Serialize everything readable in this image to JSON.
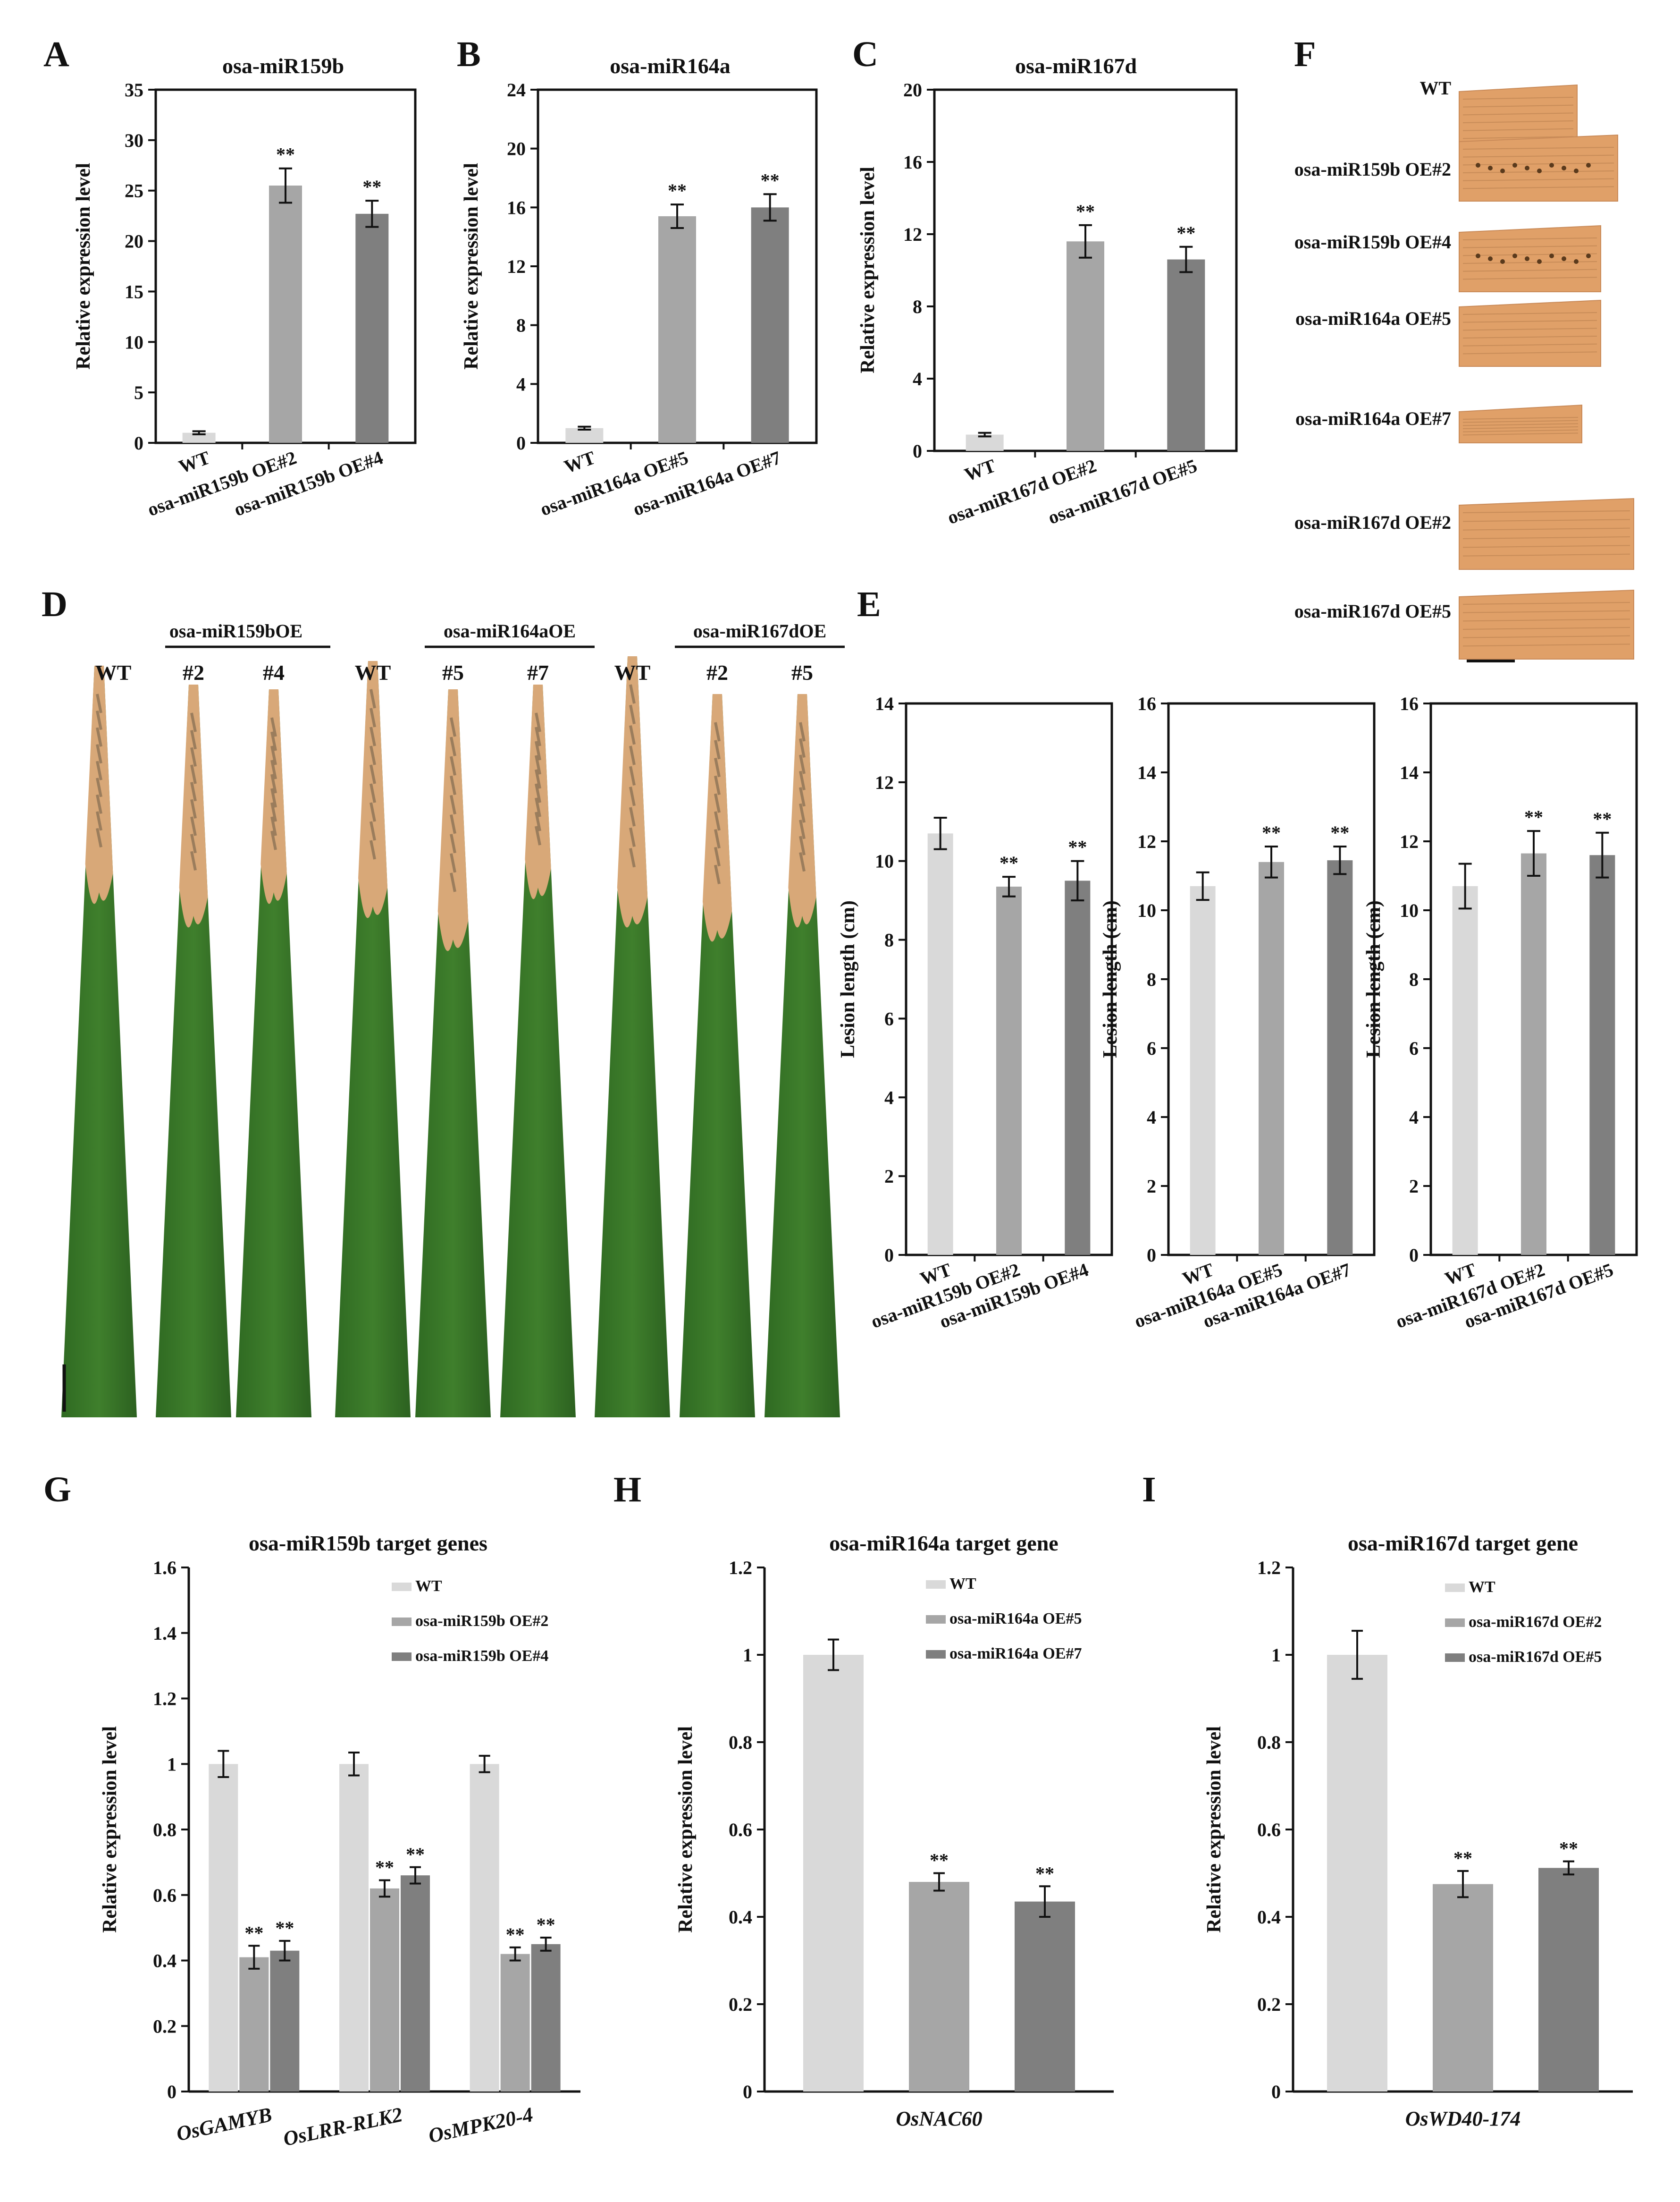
{
  "panels": {
    "A": "A",
    "B": "B",
    "C": "C",
    "D": "D",
    "E": "E",
    "F": "F",
    "G": "G",
    "H": "H",
    "I": "I"
  },
  "colors": {
    "wt": "#d9d9d9",
    "oe1": "#a6a6a6",
    "oe2": "#7f7f7f",
    "leaf_green": "#3f7f2c",
    "leaf_lesion": "#d8a878",
    "stain": "#e0a068"
  },
  "leaf_photo": {
    "group_labels": [
      "osa-miR159bOE",
      "osa-miR164aOE",
      "osa-miR167dOE"
    ],
    "lane_labels": [
      "WT",
      "#2",
      "#4",
      "WT",
      "#5",
      "#7",
      "WT",
      "#2",
      "#5"
    ]
  },
  "stain_photo": {
    "labels": [
      "WT",
      "osa-miR159b OE#2",
      "osa-miR159b OE#4",
      "osa-miR164a OE#5",
      "osa-miR164a OE#7",
      "osa-miR167d OE#2",
      "osa-miR167d OE#5"
    ]
  },
  "chart_data": [
    {
      "id": "A",
      "type": "bar",
      "title": "osa-miR159b",
      "ylabel": "Relative expression level",
      "ylim": [
        0,
        35
      ],
      "yticks": [
        "0",
        "5",
        "10",
        "15",
        "20",
        "25",
        "30",
        "35"
      ],
      "categories": [
        "WT",
        "osa-miR159b OE#2",
        "osa-miR159b OE#4"
      ],
      "values": [
        1.0,
        25.5,
        22.7
      ],
      "errors": [
        0.15,
        1.7,
        1.3
      ],
      "significance": [
        "",
        "**",
        "**"
      ]
    },
    {
      "id": "B",
      "type": "bar",
      "title": "osa-miR164a",
      "ylabel": "Relative expression level",
      "ylim": [
        0,
        24
      ],
      "yticks": [
        "0",
        "4",
        "8",
        "12",
        "16",
        "20",
        "24"
      ],
      "categories": [
        "WT",
        "osa-miR164a OE#5",
        "osa-miR164a OE#7"
      ],
      "values": [
        1.0,
        15.4,
        16.0
      ],
      "errors": [
        0.1,
        0.8,
        0.9
      ],
      "significance": [
        "",
        "**",
        "**"
      ]
    },
    {
      "id": "C",
      "type": "bar",
      "title": "osa-miR167d",
      "ylabel": "Relative expression level",
      "ylim": [
        0,
        20
      ],
      "yticks": [
        "0",
        "4",
        "8",
        "12",
        "16",
        "20"
      ],
      "categories": [
        "WT",
        "osa-miR167d OE#2",
        "osa-miR167d OE#5"
      ],
      "values": [
        0.9,
        11.6,
        10.6
      ],
      "errors": [
        0.1,
        0.9,
        0.7
      ],
      "significance": [
        "",
        "**",
        "**"
      ]
    },
    {
      "id": "E1",
      "type": "bar",
      "title": "",
      "ylabel": "Lesion length (cm)",
      "ylim": [
        0,
        14
      ],
      "yticks": [
        "0",
        "2",
        "4",
        "6",
        "8",
        "10",
        "12",
        "14"
      ],
      "categories": [
        "WT",
        "osa-miR159b OE#2",
        "osa-miR159b OE#4"
      ],
      "values": [
        10.7,
        9.35,
        9.5
      ],
      "errors": [
        0.4,
        0.25,
        0.5
      ],
      "significance": [
        "",
        "**",
        "**"
      ]
    },
    {
      "id": "E2",
      "type": "bar",
      "title": "",
      "ylabel": "Lesion length (cm)",
      "ylim": [
        0,
        16
      ],
      "yticks": [
        "0",
        "2",
        "4",
        "6",
        "8",
        "10",
        "12",
        "14",
        "16"
      ],
      "categories": [
        "WT",
        "osa-miR164a OE#5",
        "osa-miR164a OE#7"
      ],
      "values": [
        10.7,
        11.4,
        11.45
      ],
      "errors": [
        0.4,
        0.45,
        0.4
      ],
      "significance": [
        "",
        "**",
        "**"
      ]
    },
    {
      "id": "E3",
      "type": "bar",
      "title": "",
      "ylabel": "Lesion length (cm)",
      "ylim": [
        0,
        16
      ],
      "yticks": [
        "0",
        "2",
        "4",
        "6",
        "8",
        "10",
        "12",
        "14",
        "16"
      ],
      "categories": [
        "WT",
        "osa-miR167d OE#2",
        "osa-miR167d OE#5"
      ],
      "values": [
        10.7,
        11.65,
        11.6
      ],
      "errors": [
        0.65,
        0.65,
        0.65
      ],
      "significance": [
        "",
        "**",
        "**"
      ]
    },
    {
      "id": "G",
      "type": "bar",
      "title": "osa-miR159b target genes",
      "ylabel": "Relative expression level",
      "ylim": [
        0,
        1.6
      ],
      "yticks": [
        "0",
        "0.2",
        "0.4",
        "0.6",
        "0.8",
        "1",
        "1.2",
        "1.4",
        "1.6"
      ],
      "categories": [
        "OsGAMYB",
        "OsLRR-RLK2",
        "OsMPK20-4"
      ],
      "series": [
        {
          "name": "WT",
          "values": [
            1.0,
            1.0,
            1.0
          ],
          "errors": [
            0.04,
            0.035,
            0.025
          ],
          "significance": [
            "",
            "",
            ""
          ]
        },
        {
          "name": "osa-miR159b OE#2",
          "values": [
            0.41,
            0.62,
            0.42
          ],
          "errors": [
            0.035,
            0.025,
            0.02
          ],
          "significance": [
            "**",
            "**",
            "**"
          ]
        },
        {
          "name": "osa-miR159b OE#4",
          "values": [
            0.43,
            0.66,
            0.45
          ],
          "errors": [
            0.03,
            0.025,
            0.02
          ],
          "significance": [
            "**",
            "**",
            "**"
          ]
        }
      ]
    },
    {
      "id": "H",
      "type": "bar",
      "title": "osa-miR164a target gene",
      "ylabel": "Relative expression level",
      "ylim": [
        0,
        1.2
      ],
      "yticks": [
        "0",
        "0.2",
        "0.4",
        "0.6",
        "0.8",
        "1",
        "1.2"
      ],
      "categories": [
        "OsNAC60"
      ],
      "series": [
        {
          "name": "WT",
          "values": [
            1.0
          ],
          "errors": [
            0.035
          ],
          "significance": [
            ""
          ]
        },
        {
          "name": "osa-miR164a OE#5",
          "values": [
            0.48
          ],
          "errors": [
            0.02
          ],
          "significance": [
            "**"
          ]
        },
        {
          "name": "osa-miR164a OE#7",
          "values": [
            0.435
          ],
          "errors": [
            0.035
          ],
          "significance": [
            "**"
          ]
        }
      ]
    },
    {
      "id": "I",
      "type": "bar",
      "title": "osa-miR167d target gene",
      "ylabel": "Relative expression level",
      "ylim": [
        0,
        1.2
      ],
      "yticks": [
        "0",
        "0.2",
        "0.4",
        "0.6",
        "0.8",
        "1",
        "1.2"
      ],
      "categories": [
        "OsWD40-174"
      ],
      "series": [
        {
          "name": "WT",
          "values": [
            1.0
          ],
          "errors": [
            0.055
          ],
          "significance": [
            ""
          ]
        },
        {
          "name": "osa-miR167d OE#2",
          "values": [
            0.475
          ],
          "errors": [
            0.03
          ],
          "significance": [
            "**"
          ]
        },
        {
          "name": "osa-miR167d OE#5",
          "values": [
            0.512
          ],
          "errors": [
            0.015
          ],
          "significance": [
            "**"
          ]
        }
      ]
    }
  ]
}
